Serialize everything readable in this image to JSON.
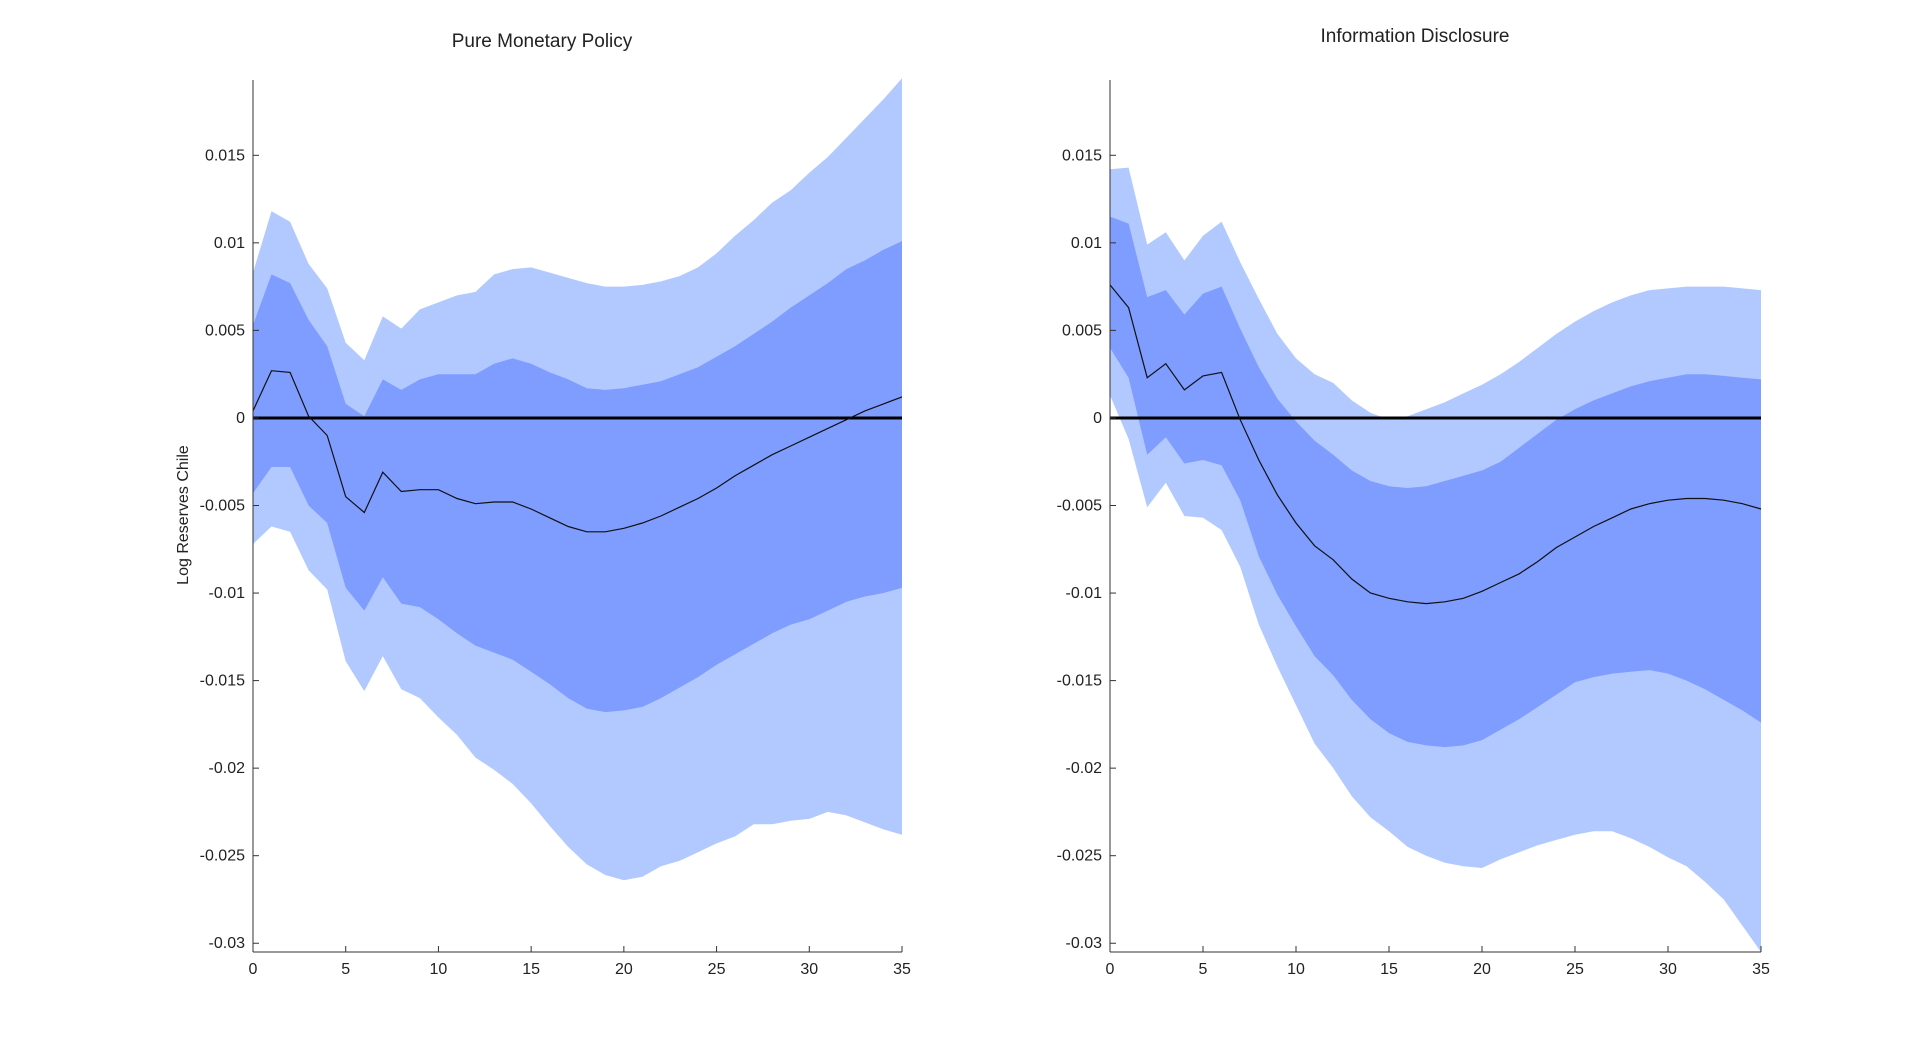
{
  "figure": {
    "ylabel": "Log Reserves Chile",
    "colors": {
      "outer_band": "#b1c9ff",
      "inner_band": "#7f9cff",
      "median": "#111111",
      "zero_line": "#000000",
      "axis": "#333333"
    }
  },
  "chart_data": [
    {
      "type": "area",
      "title": "Pure Monetary Policy",
      "xlabel": "",
      "ylabel": "Log Reserves Chile",
      "xlim": [
        0,
        35
      ],
      "ylim": [
        -0.0305,
        0.0193
      ],
      "xticks": [
        0,
        5,
        10,
        15,
        20,
        25,
        30,
        35
      ],
      "xtick_labels": [
        "0",
        "5",
        "10",
        "15",
        "20",
        "25",
        "30",
        "35"
      ],
      "yticks": [
        -0.03,
        -0.025,
        -0.02,
        -0.015,
        -0.01,
        -0.005,
        0,
        0.005,
        0.01,
        0.015
      ],
      "ytick_labels": [
        "-0.03",
        "-0.025",
        "-0.02",
        "-0.015",
        "-0.01",
        "-0.005",
        "0",
        "0.005",
        "0.01",
        "0.015"
      ],
      "x": [
        0,
        1,
        2,
        3,
        4,
        5,
        6,
        7,
        8,
        9,
        10,
        11,
        12,
        13,
        14,
        15,
        16,
        17,
        18,
        19,
        20,
        21,
        22,
        23,
        24,
        25,
        26,
        27,
        28,
        29,
        30,
        31,
        32,
        33,
        34,
        35
      ],
      "series": [
        {
          "name": "outer_upper",
          "values": [
            0.0083,
            0.0118,
            0.0112,
            0.0088,
            0.0074,
            0.0043,
            0.0033,
            0.0058,
            0.0051,
            0.0062,
            0.0066,
            0.007,
            0.0072,
            0.0082,
            0.0085,
            0.0086,
            0.0083,
            0.008,
            0.0077,
            0.0075,
            0.0075,
            0.0076,
            0.0078,
            0.0081,
            0.0086,
            0.0094,
            0.0104,
            0.0113,
            0.0123,
            0.013,
            0.014,
            0.0149,
            0.016,
            0.0171,
            0.0182,
            0.0194
          ]
        },
        {
          "name": "inner_upper",
          "values": [
            0.0053,
            0.0082,
            0.0077,
            0.0056,
            0.0041,
            0.0008,
            0.0001,
            0.0022,
            0.0016,
            0.0022,
            0.0025,
            0.0025,
            0.0025,
            0.0031,
            0.0034,
            0.0031,
            0.0026,
            0.0022,
            0.0017,
            0.0016,
            0.0017,
            0.0019,
            0.0021,
            0.0025,
            0.0029,
            0.0035,
            0.0041,
            0.0048,
            0.0055,
            0.0063,
            0.007,
            0.0077,
            0.0085,
            0.009,
            0.0096,
            0.0101
          ]
        },
        {
          "name": "median",
          "values": [
            0.0004,
            0.0027,
            0.0026,
            0.0001,
            -0.001,
            -0.0045,
            -0.0054,
            -0.0031,
            -0.0042,
            -0.0041,
            -0.0041,
            -0.0046,
            -0.0049,
            -0.0048,
            -0.0048,
            -0.0052,
            -0.0057,
            -0.0062,
            -0.0065,
            -0.0065,
            -0.0063,
            -0.006,
            -0.0056,
            -0.0051,
            -0.0046,
            -0.004,
            -0.0033,
            -0.0027,
            -0.0021,
            -0.0016,
            -0.0011,
            -0.0006,
            -0.0001,
            0.0004,
            0.0008,
            0.0012
          ]
        },
        {
          "name": "inner_lower",
          "values": [
            -0.0043,
            -0.0028,
            -0.0028,
            -0.005,
            -0.006,
            -0.0097,
            -0.011,
            -0.0091,
            -0.0106,
            -0.0108,
            -0.0115,
            -0.0123,
            -0.013,
            -0.0134,
            -0.0138,
            -0.0145,
            -0.0152,
            -0.016,
            -0.0166,
            -0.0168,
            -0.0167,
            -0.0165,
            -0.016,
            -0.0154,
            -0.0148,
            -0.0141,
            -0.0135,
            -0.0129,
            -0.0123,
            -0.0118,
            -0.0115,
            -0.011,
            -0.0105,
            -0.0102,
            -0.01,
            -0.0097
          ]
        },
        {
          "name": "outer_lower",
          "values": [
            -0.0072,
            -0.0062,
            -0.0065,
            -0.0087,
            -0.0098,
            -0.0139,
            -0.0156,
            -0.0136,
            -0.0155,
            -0.016,
            -0.0171,
            -0.0181,
            -0.0194,
            -0.0201,
            -0.0209,
            -0.022,
            -0.0233,
            -0.0245,
            -0.0255,
            -0.0261,
            -0.0264,
            -0.0262,
            -0.0256,
            -0.0253,
            -0.0248,
            -0.0243,
            -0.0239,
            -0.0232,
            -0.0232,
            -0.023,
            -0.0229,
            -0.0225,
            -0.0227,
            -0.0231,
            -0.0235,
            -0.0238
          ]
        }
      ]
    },
    {
      "type": "area",
      "title": "Information Disclosure",
      "xlabel": "",
      "ylabel": "",
      "xlim": [
        0,
        35
      ],
      "ylim": [
        -0.0305,
        0.0193
      ],
      "xticks": [
        0,
        5,
        10,
        15,
        20,
        25,
        30,
        35
      ],
      "xtick_labels": [
        "0",
        "5",
        "10",
        "15",
        "20",
        "25",
        "30",
        "35"
      ],
      "yticks": [
        -0.03,
        -0.025,
        -0.02,
        -0.015,
        -0.01,
        -0.005,
        0,
        0.005,
        0.01,
        0.015
      ],
      "ytick_labels": [
        "-0.03",
        "-0.025",
        "-0.02",
        "-0.015",
        "-0.01",
        "-0.005",
        "0",
        "0.005",
        "0.01",
        "0.015"
      ],
      "x": [
        0,
        1,
        2,
        3,
        4,
        5,
        6,
        7,
        8,
        9,
        10,
        11,
        12,
        13,
        14,
        15,
        16,
        17,
        18,
        19,
        20,
        21,
        22,
        23,
        24,
        25,
        26,
        27,
        28,
        29,
        30,
        31,
        32,
        33,
        34,
        35
      ],
      "series": [
        {
          "name": "outer_upper",
          "values": [
            0.0142,
            0.0143,
            0.0099,
            0.0106,
            0.009,
            0.0104,
            0.0112,
            0.0089,
            0.0068,
            0.0048,
            0.0034,
            0.0025,
            0.002,
            0.001,
            0.0003,
            -0.0001,
            0.0001,
            0.0005,
            0.0009,
            0.0014,
            0.0019,
            0.0025,
            0.0032,
            0.004,
            0.0048,
            0.0055,
            0.0061,
            0.0066,
            0.007,
            0.0073,
            0.0074,
            0.0075,
            0.0075,
            0.0075,
            0.0074,
            0.0073
          ]
        },
        {
          "name": "inner_upper",
          "values": [
            0.0115,
            0.0111,
            0.0069,
            0.0073,
            0.0059,
            0.0071,
            0.0075,
            0.0051,
            0.0029,
            0.0011,
            -0.0002,
            -0.0013,
            -0.0021,
            -0.003,
            -0.0036,
            -0.0039,
            -0.004,
            -0.0039,
            -0.0036,
            -0.0033,
            -0.003,
            -0.0025,
            -0.0017,
            -0.0009,
            -0.0001,
            0.0005,
            0.001,
            0.0014,
            0.0018,
            0.0021,
            0.0023,
            0.0025,
            0.0025,
            0.0024,
            0.0023,
            0.0022
          ]
        },
        {
          "name": "median",
          "values": [
            0.0076,
            0.0063,
            0.0023,
            0.0031,
            0.0016,
            0.0024,
            0.0026,
            -0.0001,
            -0.0024,
            -0.0044,
            -0.006,
            -0.0073,
            -0.0081,
            -0.0092,
            -0.01,
            -0.0103,
            -0.0105,
            -0.0106,
            -0.0105,
            -0.0103,
            -0.0099,
            -0.0094,
            -0.0089,
            -0.0082,
            -0.0074,
            -0.0068,
            -0.0062,
            -0.0057,
            -0.0052,
            -0.0049,
            -0.0047,
            -0.0046,
            -0.0046,
            -0.0047,
            -0.0049,
            -0.0052
          ]
        },
        {
          "name": "inner_lower",
          "values": [
            0.004,
            0.0023,
            -0.0021,
            -0.0011,
            -0.0026,
            -0.0024,
            -0.0027,
            -0.0047,
            -0.0079,
            -0.0101,
            -0.0119,
            -0.0136,
            -0.0147,
            -0.0161,
            -0.0172,
            -0.018,
            -0.0185,
            -0.0187,
            -0.0188,
            -0.0187,
            -0.0184,
            -0.0178,
            -0.0172,
            -0.0165,
            -0.0158,
            -0.0151,
            -0.0148,
            -0.0146,
            -0.0145,
            -0.0144,
            -0.0146,
            -0.015,
            -0.0155,
            -0.0161,
            -0.0167,
            -0.0174
          ]
        },
        {
          "name": "outer_lower",
          "values": [
            0.0013,
            -0.0012,
            -0.0051,
            -0.0037,
            -0.0056,
            -0.0057,
            -0.0064,
            -0.0085,
            -0.0118,
            -0.0142,
            -0.0164,
            -0.0186,
            -0.02,
            -0.0216,
            -0.0228,
            -0.0236,
            -0.0245,
            -0.025,
            -0.0254,
            -0.0256,
            -0.0257,
            -0.0252,
            -0.0248,
            -0.0244,
            -0.0241,
            -0.0238,
            -0.0236,
            -0.0236,
            -0.024,
            -0.0245,
            -0.0251,
            -0.0256,
            -0.0265,
            -0.0275,
            -0.029,
            -0.0305
          ]
        }
      ]
    }
  ]
}
